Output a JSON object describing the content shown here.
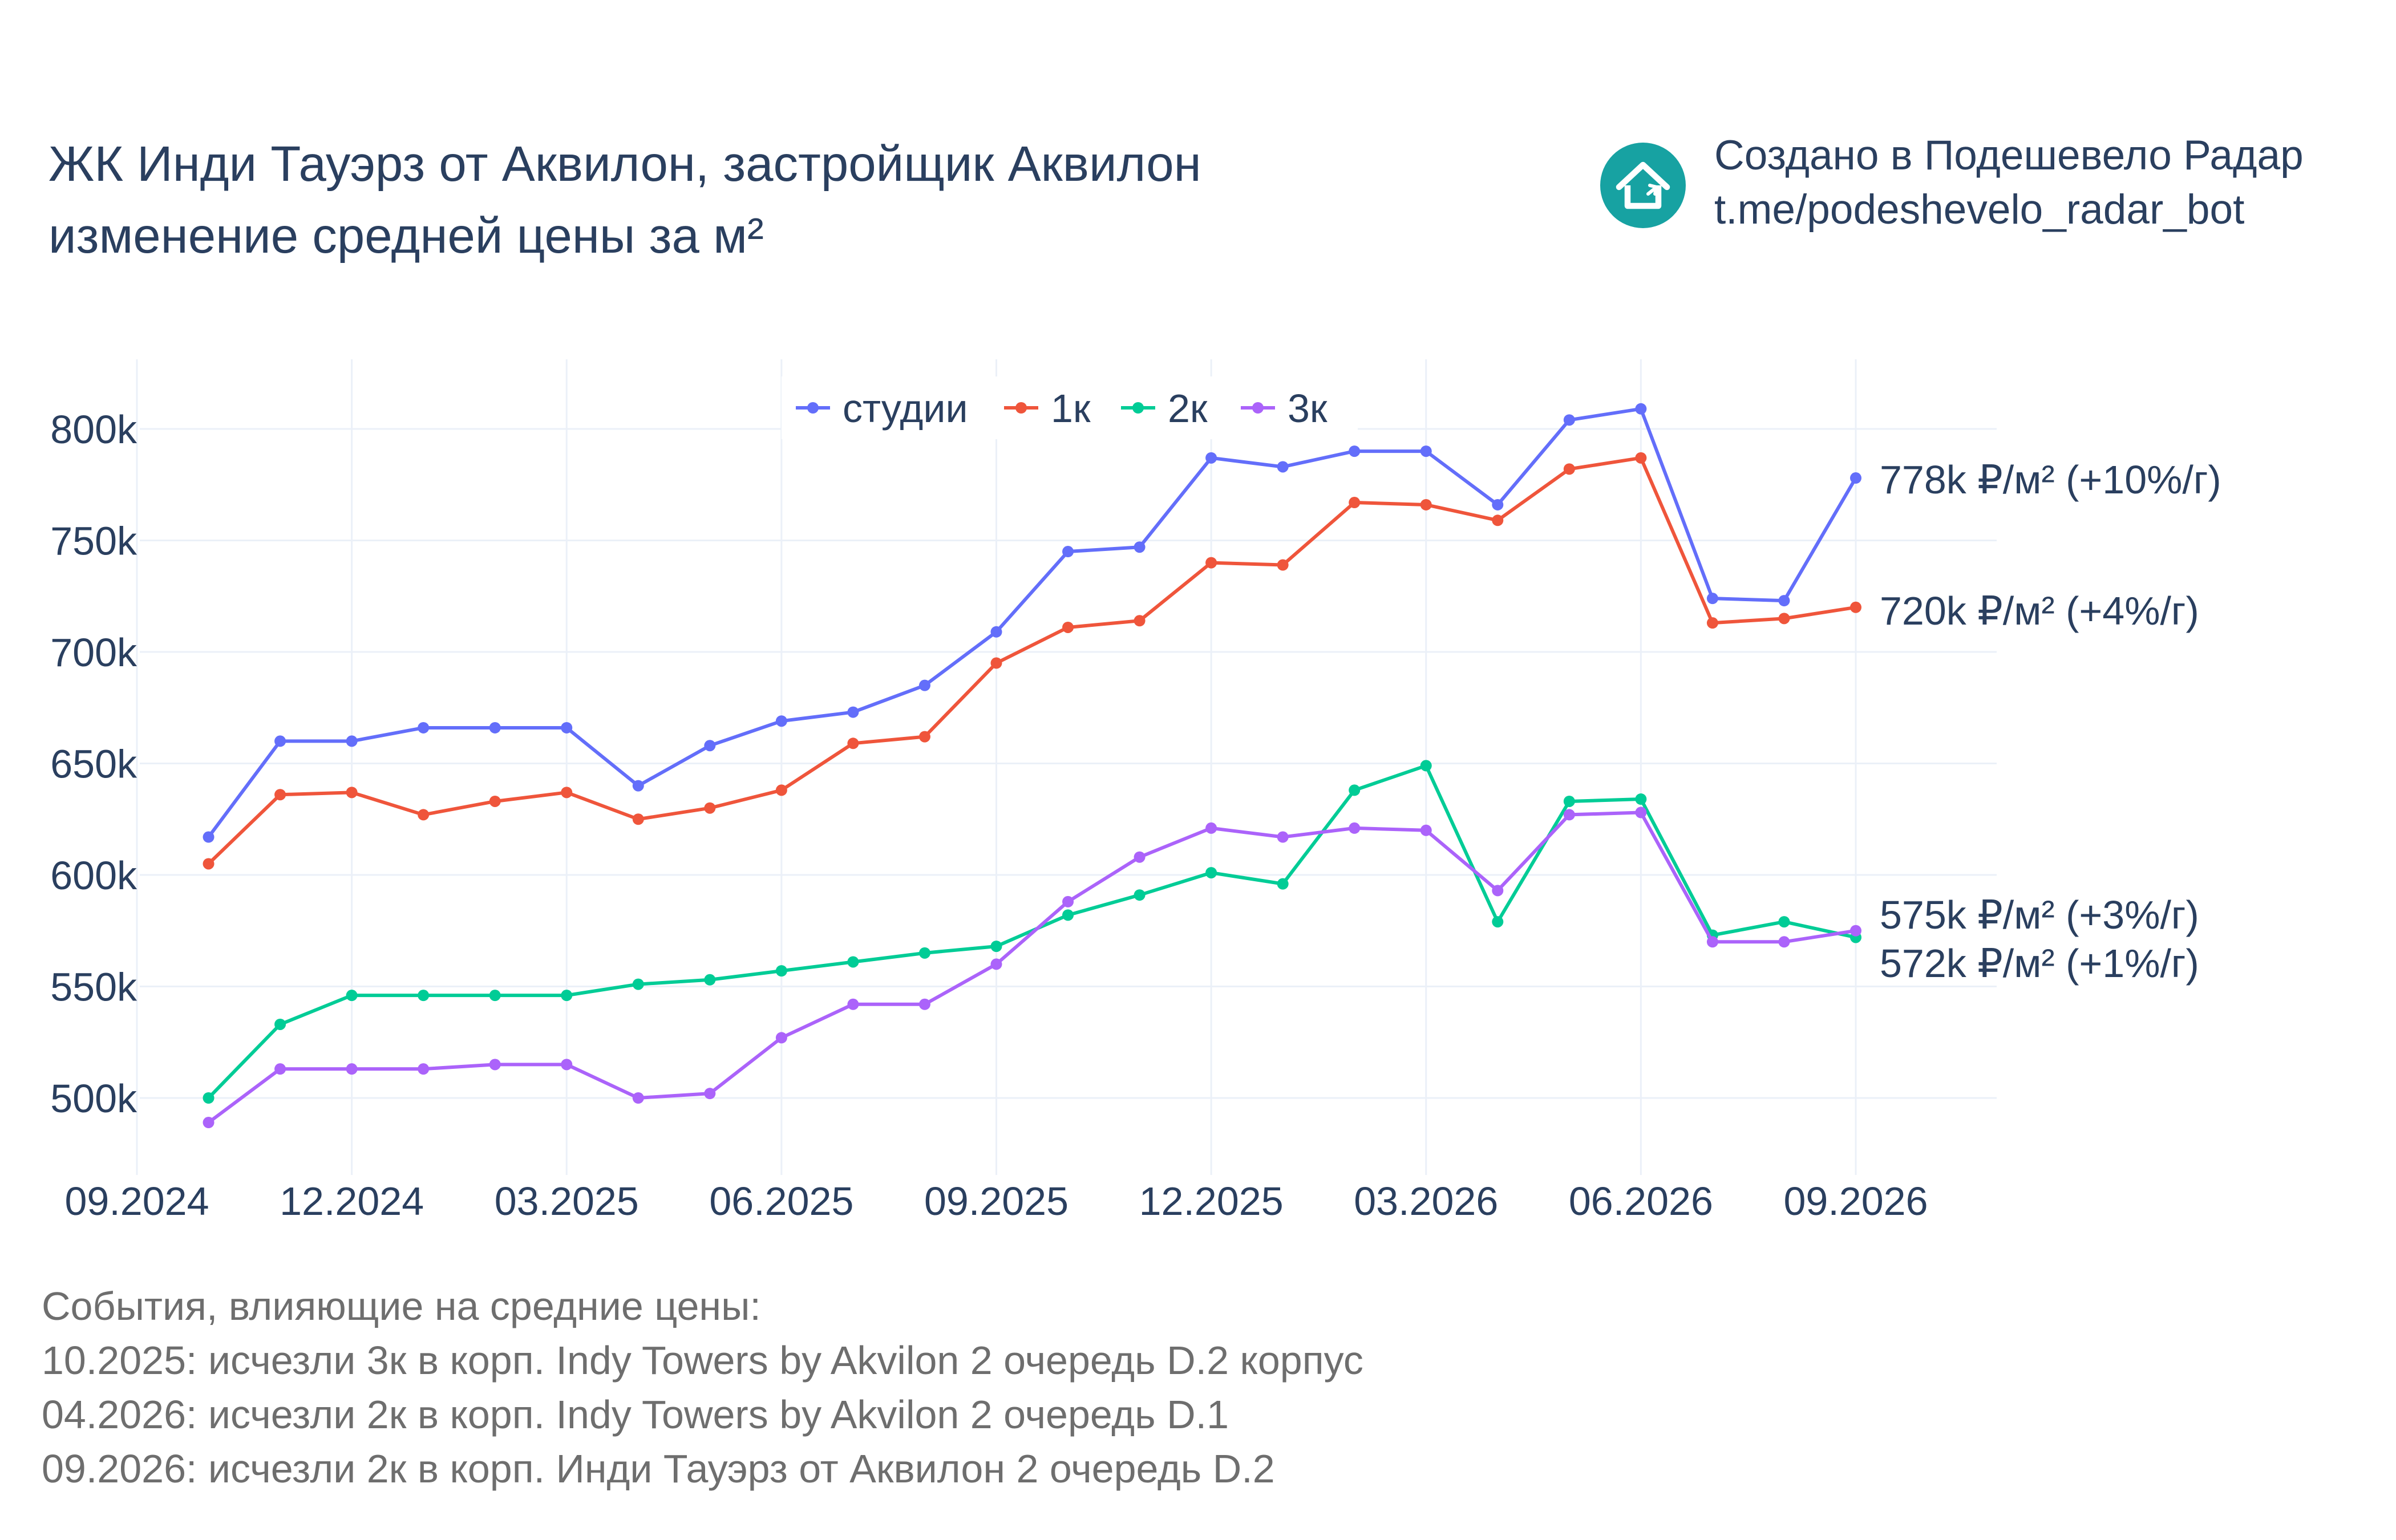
{
  "title": {
    "line1": "ЖК Инди Тауэрз от Аквилон, застройщик Аквилон",
    "line2": "изменение средней цены за м²"
  },
  "brand": {
    "line1": "Создано в Подешевело Радар",
    "line2": "t.me/podeshevelo_radar_bot",
    "icon": "house-logo-icon",
    "color": "#17a2a2"
  },
  "events": {
    "heading": "События, влияющие на средние цены:",
    "items": [
      "10.2025: исчезли 3к в корп. Indy Towers by Akvilon 2 очередь D.2 корпус",
      "04.2026: исчезли 2к в корп. Indy Towers by Akvilon 2 очередь D.1",
      "09.2026: исчезли 2к в корп. Инди Тауэрз от Аквилон 2 очередь D.2"
    ]
  },
  "chart_data": {
    "type": "line",
    "x": [
      "10.2024",
      "11.2024",
      "12.2024",
      "01.2025",
      "02.2025",
      "03.2025",
      "04.2025",
      "05.2025",
      "06.2025",
      "07.2025",
      "08.2025",
      "09.2025",
      "10.2025",
      "11.2025",
      "12.2025",
      "01.2026",
      "02.2026",
      "03.2026",
      "04.2026",
      "05.2026",
      "06.2026",
      "07.2026",
      "08.2026",
      "09.2026"
    ],
    "x_ticks": [
      "09.2024",
      "12.2024",
      "03.2025",
      "06.2025",
      "09.2025",
      "12.2025",
      "03.2026",
      "06.2026",
      "09.2026"
    ],
    "ylim": [
      470000,
      830000
    ],
    "y_ticks": [
      500000,
      550000,
      600000,
      650000,
      700000,
      750000,
      800000
    ],
    "y_tick_labels": [
      "500k",
      "550k",
      "600k",
      "650k",
      "700k",
      "750k",
      "800k"
    ],
    "grid": true,
    "legend_position": "top-center",
    "series": [
      {
        "name": "студии",
        "color": "#636efa",
        "values": [
          617000,
          660000,
          660000,
          666000,
          666000,
          666000,
          640000,
          658000,
          669000,
          673000,
          685000,
          709000,
          745000,
          747000,
          787000,
          783000,
          790000,
          790000,
          766000,
          804000,
          809000,
          724000,
          723000,
          778000
        ],
        "end_label": "778k ₽/м² (+10%/г)"
      },
      {
        "name": "1к",
        "color": "#ef553b",
        "values": [
          605000,
          636000,
          637000,
          627000,
          633000,
          637000,
          625000,
          630000,
          638000,
          659000,
          662000,
          695000,
          711000,
          714000,
          740000,
          739000,
          767000,
          766000,
          759000,
          782000,
          787000,
          713000,
          715000,
          720000
        ],
        "end_label": "720k ₽/м² (+4%/г)"
      },
      {
        "name": "2к",
        "color": "#00cc96",
        "values": [
          500000,
          533000,
          546000,
          546000,
          546000,
          546000,
          551000,
          553000,
          557000,
          561000,
          565000,
          568000,
          582000,
          591000,
          601000,
          596000,
          638000,
          649000,
          579000,
          633000,
          634000,
          573000,
          579000,
          572000
        ],
        "end_label": "572k ₽/м² (+1%/г)"
      },
      {
        "name": "3к",
        "color": "#ab63fa",
        "values": [
          489000,
          513000,
          513000,
          513000,
          515000,
          515000,
          500000,
          502000,
          527000,
          542000,
          542000,
          560000,
          588000,
          608000,
          621000,
          617000,
          621000,
          620000,
          593000,
          627000,
          628000,
          570000,
          570000,
          575000
        ],
        "end_label": "575k ₽/м² (+3%/г)"
      }
    ]
  }
}
